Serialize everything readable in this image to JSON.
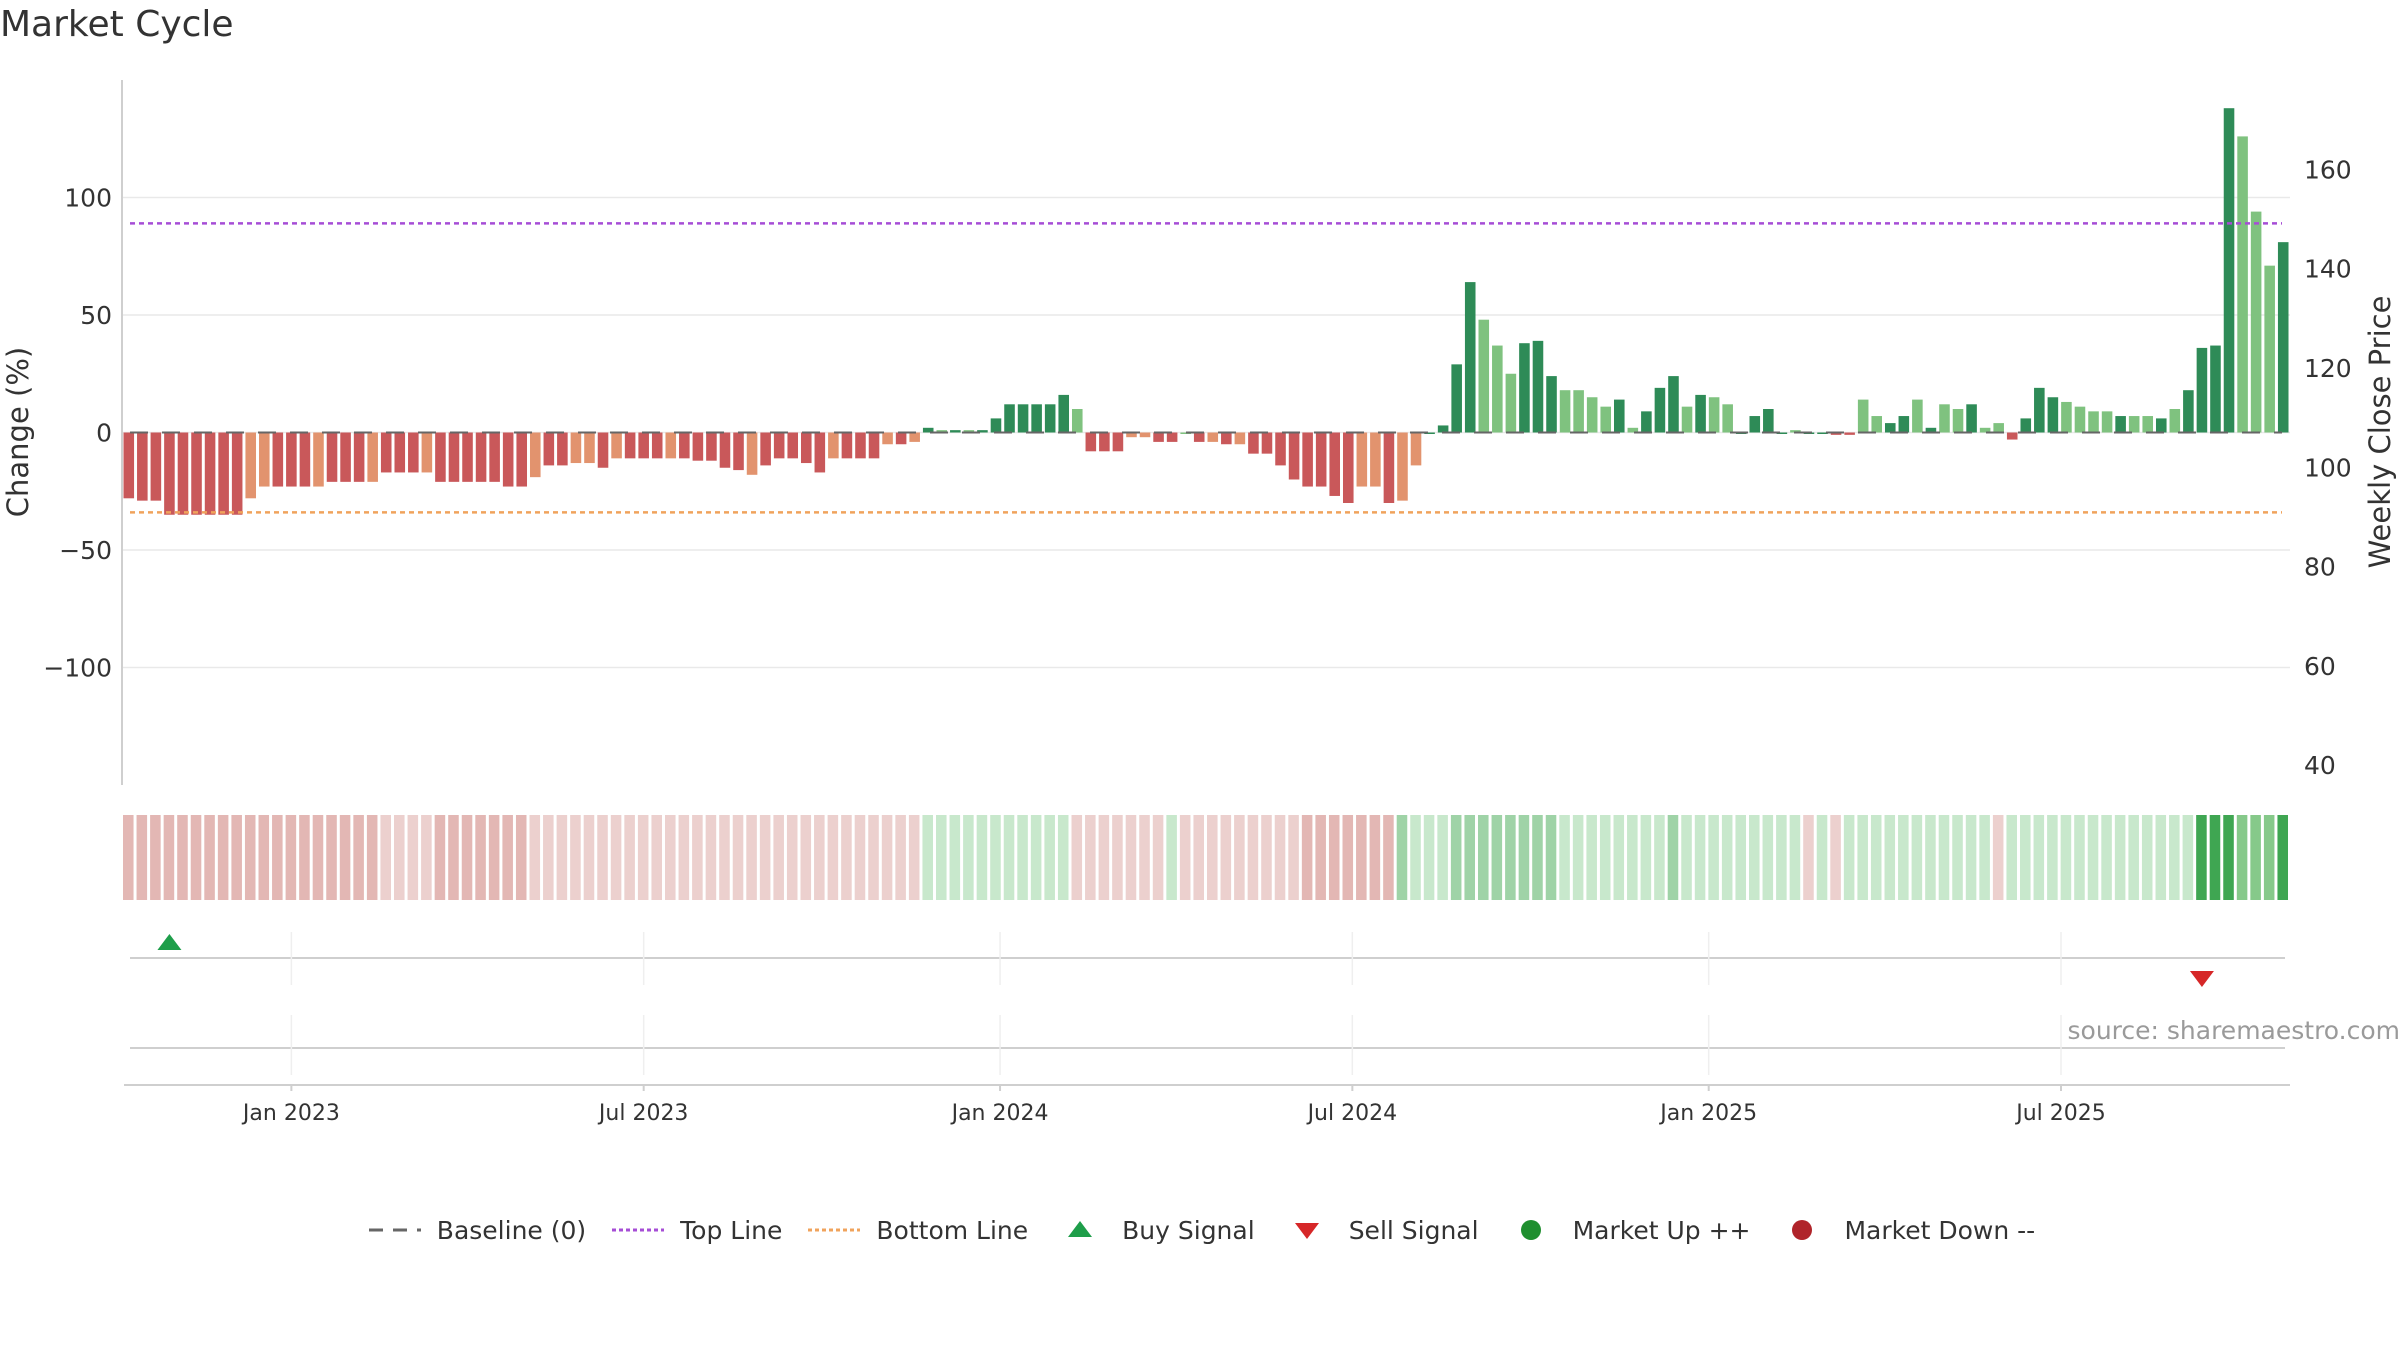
{
  "title": "Market Cycle",
  "source": "source: sharemaestro.com",
  "colors": {
    "down_strong": "#c9585a",
    "down_light": "#e2936e",
    "up_strong": "#2e8b57",
    "up_light": "#7fc27f",
    "top_line": "#a64dd6",
    "bottom_line": "#f0a35c",
    "baseline": "#666666",
    "buy": "#1e9e4a",
    "sell": "#d62728",
    "market_up": "#1f8f2f",
    "market_down": "#b0242a"
  },
  "legend": [
    {
      "key": "baseline",
      "label": "Baseline (0)",
      "icon": "dash-line-icon"
    },
    {
      "key": "top_line",
      "label": "Top Line",
      "icon": "dotted-line-icon"
    },
    {
      "key": "bottom_line",
      "label": "Bottom Line",
      "icon": "dotted-line-icon"
    },
    {
      "key": "buy",
      "label": "Buy Signal",
      "icon": "triangle-up-icon"
    },
    {
      "key": "sell",
      "label": "Sell Signal",
      "icon": "triangle-down-icon"
    },
    {
      "key": "market_up",
      "label": "Market Up ++",
      "icon": "circle-icon"
    },
    {
      "key": "market_down",
      "label": "Market Down --",
      "icon": "circle-icon"
    }
  ],
  "chart_data": {
    "type": "bar",
    "start_date": "2022-10-10",
    "ylabel": "Change (%)",
    "y2label": "Weekly Close Price",
    "ylim": [
      -150,
      150
    ],
    "y2lim": [
      36,
      178
    ],
    "yticks": [
      -100,
      -50,
      0,
      50,
      100
    ],
    "ytick_labels": [
      "−100",
      "−50",
      "0",
      "50",
      "100"
    ],
    "y2ticks": [
      40,
      60,
      80,
      100,
      120,
      140,
      160
    ],
    "top_line": 89,
    "bottom_line": -34,
    "xticks": [
      {
        "label": "Jan 2023",
        "week": 12
      },
      {
        "label": "Jul 2023",
        "week": 38
      },
      {
        "label": "Jan 2024",
        "week": 64.3
      },
      {
        "label": "Jul 2024",
        "week": 90.3
      },
      {
        "label": "Jan 2025",
        "week": 116.6
      },
      {
        "label": "Jul 2025",
        "week": 142.6
      }
    ],
    "values": [
      -28,
      -29,
      -29,
      -35,
      -35,
      -35,
      -35,
      -35,
      -35,
      -28,
      -23,
      -23,
      -23,
      -23,
      -23,
      -21,
      -21,
      -21,
      -21,
      -17,
      -17,
      -17,
      -17,
      -21,
      -21,
      -21,
      -21,
      -21,
      -23,
      -23,
      -19,
      -14,
      -14,
      -13,
      -13,
      -15,
      -11,
      -11,
      -11,
      -11,
      -11,
      -11,
      -12,
      -12,
      -15,
      -16,
      -18,
      -14,
      -11,
      -11,
      -13,
      -17,
      -11,
      -11,
      -11,
      -11,
      -5,
      -5,
      -4,
      2,
      1,
      1,
      1,
      1,
      6,
      12,
      12,
      12,
      12,
      16,
      10,
      -8,
      -8,
      -8,
      -2,
      -2,
      -4,
      -4,
      0,
      -4,
      -4,
      -5,
      -5,
      -9,
      -9,
      -14,
      -20,
      -23,
      -23,
      -27,
      -30,
      -23,
      -23,
      -30,
      -29,
      -14,
      0,
      3,
      29,
      64,
      48,
      37,
      25,
      38,
      39,
      24,
      18,
      18,
      15,
      11,
      14,
      2,
      9,
      19,
      24,
      11,
      16,
      15,
      12,
      0,
      7,
      10,
      0,
      1,
      0,
      0,
      -1,
      -1,
      14,
      7,
      4,
      7,
      14,
      2,
      12,
      10,
      12,
      2,
      4,
      -3,
      6,
      19,
      15,
      13,
      11,
      9,
      9,
      7,
      7,
      7,
      6,
      10,
      18,
      36,
      37,
      138,
      126,
      94,
      71,
      81
    ],
    "shades": [
      0,
      0,
      0,
      0,
      0,
      0,
      0,
      0,
      0,
      1,
      1,
      0,
      0,
      0,
      1,
      0,
      0,
      0,
      1,
      0,
      0,
      0,
      1,
      0,
      0,
      0,
      0,
      0,
      0,
      0,
      1,
      0,
      0,
      1,
      1,
      0,
      1,
      0,
      0,
      0,
      1,
      0,
      0,
      0,
      0,
      0,
      1,
      0,
      0,
      0,
      0,
      0,
      1,
      0,
      0,
      0,
      1,
      0,
      1,
      0,
      1,
      0,
      1,
      0,
      0,
      0,
      0,
      0,
      0,
      0,
      1,
      0,
      0,
      0,
      1,
      1,
      0,
      0,
      1,
      0,
      1,
      0,
      1,
      0,
      0,
      0,
      0,
      0,
      0,
      0,
      0,
      1,
      1,
      0,
      1,
      1,
      0,
      0,
      0,
      0,
      1,
      1,
      1,
      0,
      0,
      0,
      1,
      1,
      1,
      1,
      0,
      1,
      0,
      0,
      0,
      1,
      0,
      1,
      1,
      0,
      0,
      0,
      0,
      1,
      0,
      0,
      0,
      0,
      1,
      1,
      0,
      0,
      1,
      0,
      1,
      1,
      0,
      1,
      1,
      0,
      0,
      0,
      0,
      1,
      1,
      1,
      1,
      0,
      1,
      1,
      0,
      1,
      0,
      0,
      0,
      0,
      1,
      1,
      1,
      0
    ],
    "regime": [
      {
        "weeks": [
          0,
          58
        ],
        "kind": "down"
      },
      {
        "weeks": [
          59,
          69
        ],
        "kind": "up"
      },
      {
        "weeks": [
          70,
          76
        ],
        "kind": "down"
      },
      {
        "weeks": [
          77,
          77
        ],
        "kind": "up"
      },
      {
        "weeks": [
          78,
          93
        ],
        "kind": "down"
      },
      {
        "weeks": [
          94,
          123
        ],
        "kind": "up"
      },
      {
        "weeks": [
          124,
          124
        ],
        "kind": "down"
      },
      {
        "weeks": [
          125,
          125
        ],
        "kind": "up"
      },
      {
        "weeks": [
          126,
          126
        ],
        "kind": "down"
      },
      {
        "weeks": [
          127,
          137
        ],
        "kind": "up"
      },
      {
        "weeks": [
          138,
          138
        ],
        "kind": "down"
      },
      {
        "weeks": [
          139,
          158
        ],
        "kind": "up"
      }
    ],
    "buy_signals": [
      {
        "week": 3
      }
    ],
    "sell_signals": [
      {
        "week": 153
      }
    ]
  }
}
